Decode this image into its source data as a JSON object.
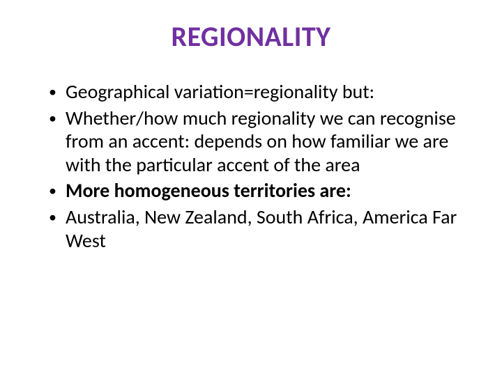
{
  "title": {
    "text": "REGIONALITY",
    "color": "#7030a0",
    "fontsize": 40,
    "weight": "bold",
    "align": "center"
  },
  "bullets": [
    {
      "text": "Geographical variation=regionality but:",
      "bold": false
    },
    {
      "text": "Whether/how much regionality we can recognise from an accent: depends on how familiar we are with the particular accent of the area",
      "bold": false
    },
    {
      "text": "More homogeneous territories are:",
      "bold": true
    },
    {
      "text": "Australia, New Zealand, South Africa, America Far West",
      "bold": false
    }
  ],
  "body": {
    "fontsize": 28,
    "color": "#000000",
    "bullet_color": "#000000"
  },
  "background_color": "#ffffff"
}
